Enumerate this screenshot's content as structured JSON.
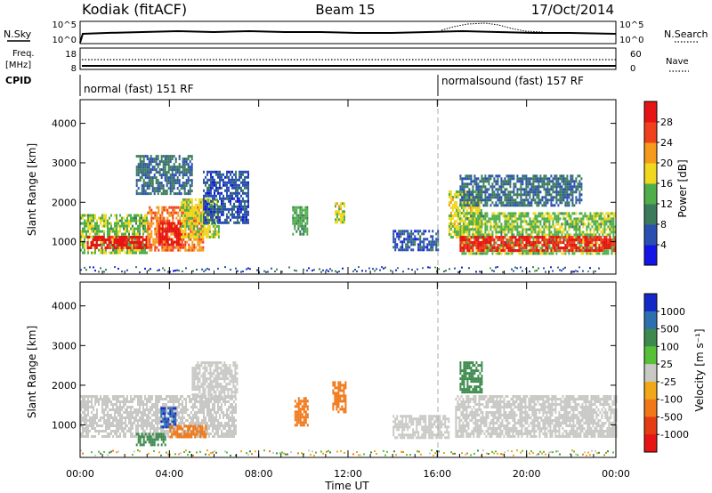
{
  "header": {
    "station": "Kodiak (fitACF)",
    "beam": "Beam 15",
    "date": "17/Oct/2014"
  },
  "noise_panel": {
    "left_label": "N.Sky",
    "right_label": "N.Search",
    "ticks_left": [
      "10^5",
      "10^0"
    ],
    "ticks_right": [
      "10^5",
      "10^0"
    ]
  },
  "freq_panel": {
    "left_label_1": "Freq.",
    "left_label_2": "[MHz]",
    "right_label": "Nave",
    "ticks_left": [
      "18",
      "8"
    ],
    "ticks_right": [
      "60",
      "0"
    ]
  },
  "cpid_panel": {
    "label": "CPID",
    "programs": [
      {
        "name": "normal (fast) 151 RF",
        "start_hour": 0
      },
      {
        "name": "normalsound (fast) 157 RF",
        "start_hour": 16
      }
    ]
  },
  "axes": {
    "ylabel": "Slant Range [km]",
    "xlabel": "Time UT",
    "ytick_labels": [
      "1000",
      "2000",
      "3000",
      "4000"
    ],
    "xtick_labels": [
      "00:00",
      "04:00",
      "08:00",
      "12:00",
      "16:00",
      "20:00",
      "00:00"
    ]
  },
  "power_colorbar": {
    "title": "Power [dB]",
    "tick_labels": [
      "4",
      "8",
      "12",
      "16",
      "20",
      "24",
      "28"
    ],
    "colors": [
      "#1414e6",
      "#2a4fb0",
      "#3b7a5c",
      "#4fae4a",
      "#f0d81e",
      "#f59a1a",
      "#f0401c",
      "#e61414"
    ]
  },
  "velocity_colorbar": {
    "title": "Velocity [m s⁻¹]",
    "tick_labels": [
      "1000",
      "500",
      "100",
      "25",
      "-25",
      "-100",
      "-500",
      "-1000"
    ],
    "colors": [
      "#1428c8",
      "#2e6fb0",
      "#3e8a4e",
      "#58c038",
      "#c8c8c4",
      "#f0a818",
      "#f07818",
      "#e63c14",
      "#e61414"
    ],
    "ground_scatter_color": "#c8c8c4"
  },
  "chart_data": {
    "type": "heatmap",
    "x_range_hours": [
      0,
      24
    ],
    "y_range_km": [
      180,
      4600
    ],
    "power_dB_range": [
      0,
      30
    ],
    "velocity_ms_range": [
      -1000,
      1000
    ],
    "power_regions": [
      {
        "t0": 0.0,
        "t1": 3.0,
        "r0": 700,
        "r1": 1700,
        "power_dB": 14
      },
      {
        "t0": 0.3,
        "t1": 3.0,
        "r0": 850,
        "r1": 1150,
        "power_dB": 28
      },
      {
        "t0": 3.0,
        "t1": 5.5,
        "r0": 800,
        "r1": 1900,
        "power_dB": 22
      },
      {
        "t0": 3.5,
        "t1": 4.6,
        "r0": 950,
        "r1": 1500,
        "power_dB": 29
      },
      {
        "t0": 4.5,
        "t1": 6.2,
        "r0": 1100,
        "r1": 2100,
        "power_dB": 16
      },
      {
        "t0": 5.5,
        "t1": 7.5,
        "r0": 1500,
        "r1": 2800,
        "power_dB": 6
      },
      {
        "t0": 2.5,
        "t1": 5.0,
        "r0": 2200,
        "r1": 3200,
        "power_dB": 8
      },
      {
        "t0": 9.5,
        "t1": 10.2,
        "r0": 1200,
        "r1": 1900,
        "power_dB": 12
      },
      {
        "t0": 11.4,
        "t1": 11.8,
        "r0": 1500,
        "r1": 2000,
        "power_dB": 16
      },
      {
        "t0": 14.0,
        "t1": 16.0,
        "r0": 800,
        "r1": 1300,
        "power_dB": 6
      },
      {
        "t0": 16.5,
        "t1": 18.0,
        "r0": 1100,
        "r1": 2300,
        "power_dB": 16
      },
      {
        "t0": 17.0,
        "t1": 24.0,
        "r0": 700,
        "r1": 1750,
        "power_dB": 14
      },
      {
        "t0": 17.0,
        "t1": 24.0,
        "r0": 800,
        "r1": 1150,
        "power_dB": 27
      },
      {
        "t0": 17.0,
        "t1": 22.5,
        "r0": 1900,
        "r1": 2700,
        "power_dB": 8
      }
    ],
    "velocity_regions": [
      {
        "t0": 0.0,
        "t1": 7.0,
        "r0": 700,
        "r1": 1750,
        "velocity_ms": 0
      },
      {
        "t0": 3.6,
        "t1": 4.3,
        "r0": 950,
        "r1": 1450,
        "velocity_ms": 1000
      },
      {
        "t0": 4.0,
        "t1": 5.6,
        "r0": 700,
        "r1": 1000,
        "velocity_ms": -300
      },
      {
        "t0": 2.5,
        "t1": 3.8,
        "r0": 500,
        "r1": 800,
        "velocity_ms": 150
      },
      {
        "t0": 5.0,
        "t1": 7.0,
        "r0": 1700,
        "r1": 2600,
        "velocity_ms": 0
      },
      {
        "t0": 9.6,
        "t1": 10.2,
        "r0": 1000,
        "r1": 1700,
        "velocity_ms": -200
      },
      {
        "t0": 11.3,
        "t1": 11.9,
        "r0": 1300,
        "r1": 2100,
        "velocity_ms": -300
      },
      {
        "t0": 14.0,
        "t1": 16.5,
        "r0": 700,
        "r1": 1250,
        "velocity_ms": 0
      },
      {
        "t0": 16.8,
        "t1": 24.0,
        "r0": 700,
        "r1": 1750,
        "velocity_ms": 0
      },
      {
        "t0": 17.0,
        "t1": 18.0,
        "r0": 1800,
        "r1": 2600,
        "velocity_ms": 150
      }
    ]
  }
}
